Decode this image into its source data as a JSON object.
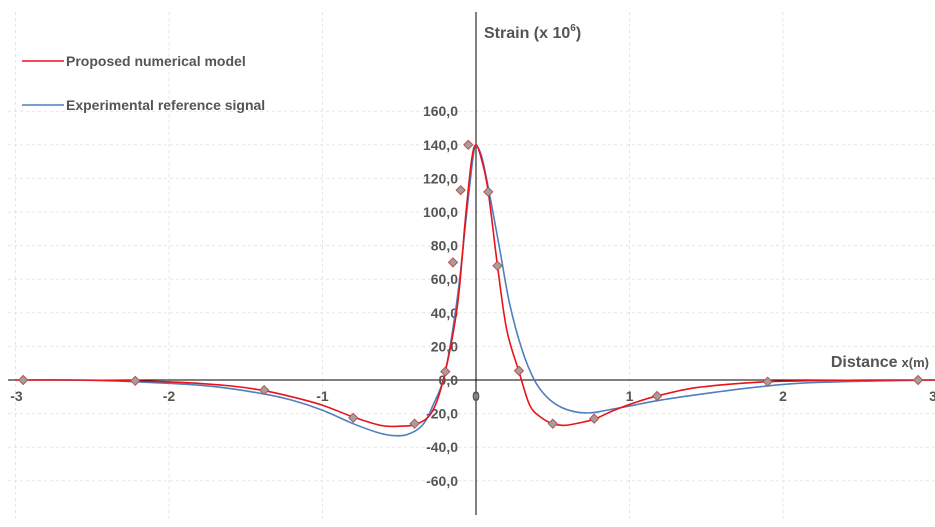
{
  "chart_data": {
    "type": "line",
    "xlabel": "Distance",
    "xlabel_unit": "x(m)",
    "ylabel": "Strain (x 10",
    "ylabel_sup": "6",
    "ylabel_end": ")",
    "xlim": [
      -3,
      3
    ],
    "ylim": [
      -60,
      160
    ],
    "x_ticks": [
      -3,
      -2,
      -1,
      0,
      1,
      2,
      3
    ],
    "x_tick_labels": [
      "-3",
      "-2",
      "-1",
      "0",
      "1",
      "2",
      "3"
    ],
    "y_ticks": [
      -60,
      -40,
      -20,
      0,
      20,
      40,
      60,
      80,
      100,
      120,
      140,
      160
    ],
    "y_tick_labels": [
      "-60,0",
      "-40,0",
      "-20,0",
      "0,0",
      "20,0",
      "40,0",
      "60,0",
      "80,0",
      "100,0",
      "120,0",
      "140,0",
      "160,0"
    ],
    "grid": true,
    "legend_position": "top-left",
    "series": [
      {
        "name": "Proposed numerical model",
        "color": "#e8141a",
        "x": [
          -3.0,
          -2.6,
          -2.25,
          -1.9,
          -1.6,
          -1.4,
          -1.2,
          -1.0,
          -0.8,
          -0.62,
          -0.5,
          -0.38,
          -0.28,
          -0.2,
          -0.12,
          -0.07,
          -0.03,
          0.0,
          0.04,
          0.08,
          0.14,
          0.2,
          0.28,
          0.35,
          0.42,
          0.5,
          0.58,
          0.7,
          0.78,
          0.9,
          1.05,
          1.18,
          1.4,
          1.65,
          1.9,
          2.2,
          2.5,
          2.8,
          3.0
        ],
        "y": [
          0.0,
          0.0,
          -0.5,
          -1.5,
          -3.5,
          -6.0,
          -10.0,
          -15.0,
          -22.0,
          -27.0,
          -27.5,
          -26.0,
          -18.0,
          5.0,
          45.0,
          95.0,
          130.0,
          140.0,
          130.0,
          112.0,
          68.0,
          30.0,
          5.0,
          -15.0,
          -22.0,
          -26.0,
          -27.0,
          -25.0,
          -23.0,
          -18.0,
          -13.0,
          -9.5,
          -5.0,
          -2.5,
          -1.0,
          -0.4,
          -0.1,
          0.0,
          0.0
        ]
      },
      {
        "name": "Experimental reference signal",
        "color": "#4f7fbf",
        "x": [
          -3.0,
          -2.5,
          -2.0,
          -1.7,
          -1.4,
          -1.2,
          -1.0,
          -0.8,
          -0.65,
          -0.55,
          -0.45,
          -0.35,
          -0.28,
          -0.2,
          -0.12,
          -0.06,
          -0.02,
          0.0,
          0.04,
          0.1,
          0.16,
          0.22,
          0.3,
          0.38,
          0.46,
          0.55,
          0.65,
          0.75,
          0.85,
          1.0,
          1.2,
          1.5,
          1.8,
          2.1,
          2.5,
          3.0
        ],
        "y": [
          0.0,
          -0.2,
          -2.0,
          -4.0,
          -8.0,
          -12.0,
          -18.0,
          -26.0,
          -31.0,
          -33.0,
          -32.5,
          -27.0,
          -15.0,
          5.0,
          50.0,
          100.0,
          132.0,
          139.0,
          132.0,
          105.0,
          75.0,
          45.0,
          18.0,
          0.0,
          -10.0,
          -16.0,
          -19.0,
          -19.5,
          -18.0,
          -15.5,
          -12.0,
          -8.0,
          -4.5,
          -2.0,
          -0.8,
          0.0
        ]
      }
    ],
    "markers": {
      "name": "Proposed numerical model",
      "color": "#a0a0a0",
      "stroke": "#c0504d",
      "x": [
        -2.95,
        -2.22,
        -1.38,
        -0.8,
        -0.4,
        -0.2,
        -0.15,
        -0.1,
        -0.05,
        0.08,
        0.14,
        0.28,
        0.5,
        0.77,
        1.18,
        1.9,
        2.88
      ],
      "y": [
        0.0,
        -0.5,
        -6.0,
        -22.5,
        -26.0,
        5.0,
        70.0,
        113.0,
        140.0,
        112.0,
        68.0,
        5.5,
        -26.0,
        -23.0,
        -9.5,
        -1.0,
        0.0
      ]
    }
  }
}
